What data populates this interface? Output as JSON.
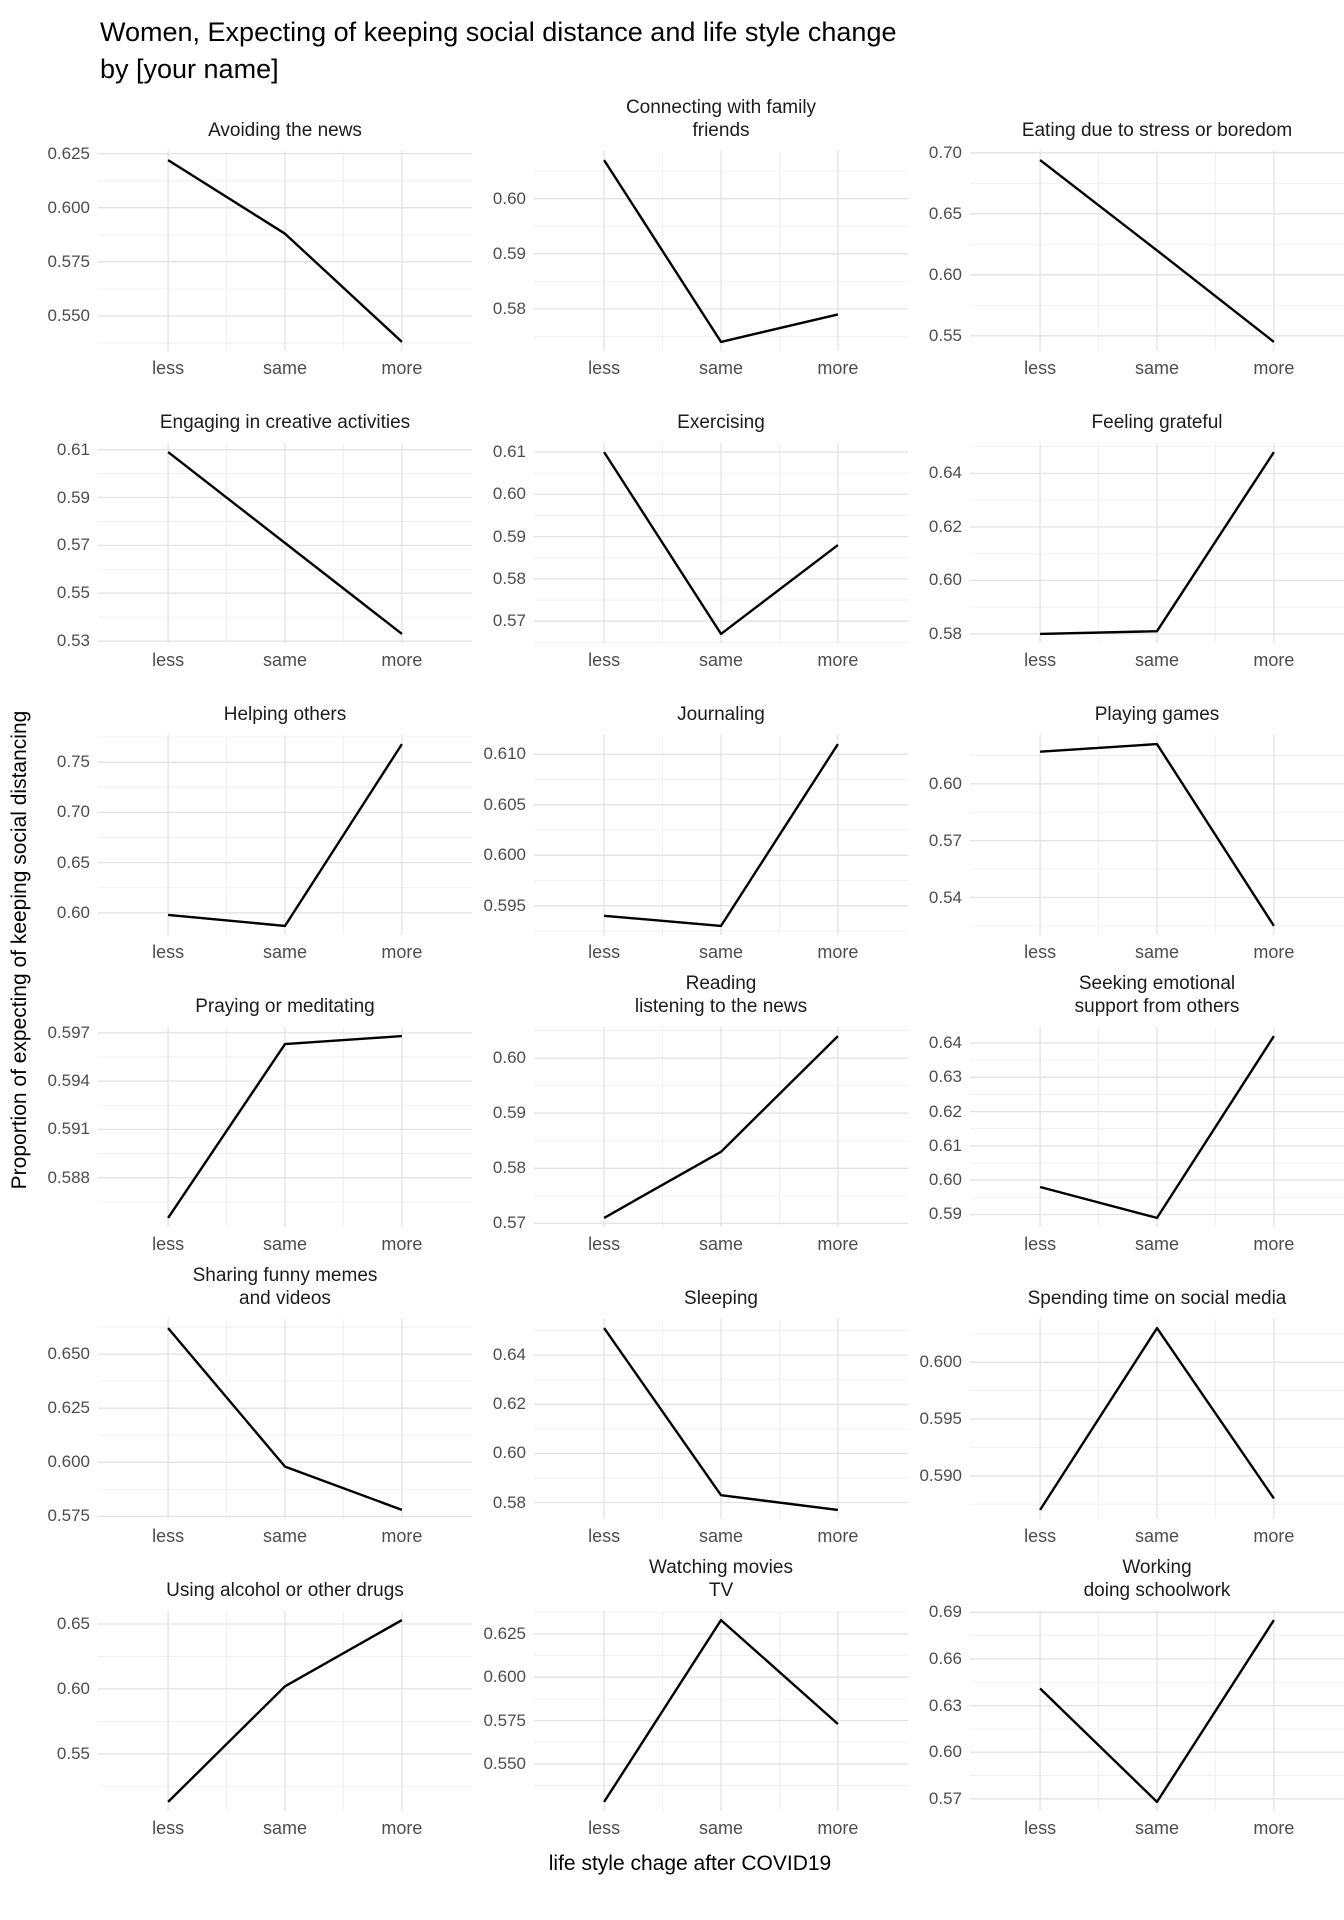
{
  "title": "Women, Expecting of keeping social distance and life style change\n by [your name]",
  "xlabel": "life style chage after COVID19",
  "ylabel": "Proportion of expecting of keeping social distancing",
  "colors": {
    "line": "#000000",
    "grid_major": "#e3e3e3",
    "grid_minor": "#f0f0f0",
    "tick_text": "#4d4d4d",
    "title_text": "#1c1c1c",
    "background": "#ffffff"
  },
  "chart_data": {
    "type": "line",
    "categories": [
      "less",
      "same",
      "more"
    ],
    "legend": "none",
    "grid": "on",
    "facets": [
      {
        "title": [
          "Avoiding the news"
        ],
        "yticks": [
          "0.550",
          "0.575",
          "0.600",
          "0.625"
        ],
        "values": [
          0.622,
          0.588,
          0.538
        ]
      },
      {
        "title": [
          "Connecting with family",
          "friends"
        ],
        "yticks": [
          "0.58",
          "0.59",
          "0.60"
        ],
        "values": [
          0.607,
          0.574,
          0.579
        ]
      },
      {
        "title": [
          "Eating due to stress or boredom"
        ],
        "yticks": [
          "0.55",
          "0.60",
          "0.65",
          "0.70"
        ],
        "values": [
          0.694,
          0.62,
          0.545
        ]
      },
      {
        "title": [
          "Engaging in creative activities"
        ],
        "yticks": [
          "0.53",
          "0.55",
          "0.57",
          "0.59",
          "0.61"
        ],
        "values": [
          0.609,
          0.571,
          0.533
        ]
      },
      {
        "title": [
          "Exercising"
        ],
        "yticks": [
          "0.57",
          "0.58",
          "0.59",
          "0.60",
          "0.61"
        ],
        "values": [
          0.61,
          0.567,
          0.588
        ]
      },
      {
        "title": [
          "Feeling grateful"
        ],
        "yticks": [
          "0.58",
          "0.60",
          "0.62",
          "0.64"
        ],
        "values": [
          0.58,
          0.581,
          0.648
        ]
      },
      {
        "title": [
          "Helping others"
        ],
        "yticks": [
          "0.60",
          "0.65",
          "0.70",
          "0.75"
        ],
        "values": [
          0.598,
          0.587,
          0.768
        ]
      },
      {
        "title": [
          "Journaling"
        ],
        "yticks": [
          "0.595",
          "0.600",
          "0.605",
          "0.610"
        ],
        "values": [
          0.594,
          0.593,
          0.611
        ]
      },
      {
        "title": [
          "Playing games"
        ],
        "yticks": [
          "0.54",
          "0.57",
          "0.60"
        ],
        "values": [
          0.617,
          0.621,
          0.525
        ]
      },
      {
        "title": [
          "Praying or meditating"
        ],
        "yticks": [
          "0.588",
          "0.591",
          "0.594",
          "0.597"
        ],
        "values": [
          0.5855,
          0.5963,
          0.5968
        ]
      },
      {
        "title": [
          "Reading",
          "listening to the news"
        ],
        "yticks": [
          "0.57",
          "0.58",
          "0.59",
          "0.60"
        ],
        "values": [
          0.571,
          0.583,
          0.604
        ]
      },
      {
        "title": [
          "Seeking emotional",
          "support from others"
        ],
        "yticks": [
          "0.59",
          "0.60",
          "0.61",
          "0.62",
          "0.63",
          "0.64"
        ],
        "values": [
          0.598,
          0.589,
          0.642
        ]
      },
      {
        "title": [
          "Sharing funny memes",
          "and videos"
        ],
        "yticks": [
          "0.575",
          "0.600",
          "0.625",
          "0.650"
        ],
        "values": [
          0.662,
          0.598,
          0.578
        ]
      },
      {
        "title": [
          "Sleeping"
        ],
        "yticks": [
          "0.58",
          "0.60",
          "0.62",
          "0.64"
        ],
        "values": [
          0.651,
          0.583,
          0.577
        ]
      },
      {
        "title": [
          "Spending time on social media"
        ],
        "yticks": [
          "0.590",
          "0.595",
          "0.600"
        ],
        "values": [
          0.587,
          0.603,
          0.588
        ]
      },
      {
        "title": [
          "Using alcohol or other drugs"
        ],
        "yticks": [
          "0.55",
          "0.60",
          "0.65"
        ],
        "values": [
          0.513,
          0.602,
          0.653
        ]
      },
      {
        "title": [
          "Watching movies",
          "TV"
        ],
        "yticks": [
          "0.550",
          "0.575",
          "0.600",
          "0.625"
        ],
        "values": [
          0.528,
          0.633,
          0.573
        ]
      },
      {
        "title": [
          "Working",
          "doing schoolwork"
        ],
        "yticks": [
          "0.57",
          "0.60",
          "0.63",
          "0.66",
          "0.69"
        ],
        "values": [
          0.641,
          0.568,
          0.685
        ]
      }
    ]
  }
}
